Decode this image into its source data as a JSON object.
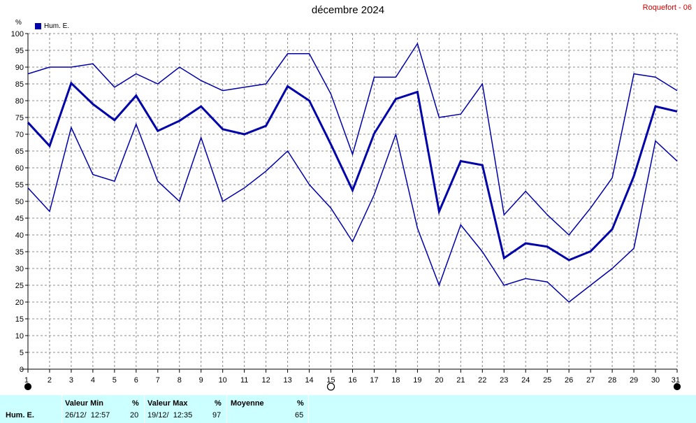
{
  "title": "décembre 2024",
  "station": "Roquefort - 06",
  "unit": "%",
  "legend": "Hum. E.",
  "chart_data": {
    "type": "line",
    "x": [
      1,
      2,
      3,
      4,
      5,
      6,
      7,
      8,
      9,
      10,
      11,
      12,
      13,
      14,
      15,
      16,
      17,
      18,
      19,
      20,
      21,
      22,
      23,
      24,
      25,
      26,
      27,
      28,
      29,
      30,
      31
    ],
    "ylim": [
      0,
      100
    ],
    "yticks": [
      0,
      5,
      10,
      15,
      20,
      25,
      30,
      35,
      40,
      45,
      50,
      55,
      60,
      65,
      70,
      75,
      80,
      85,
      90,
      95,
      100
    ],
    "xticks": [
      "1",
      "2",
      "3",
      "4",
      "5",
      "6",
      "7",
      "8",
      "9",
      "10",
      "11",
      "12",
      "13",
      "14",
      "15",
      "16",
      "17",
      "18",
      "19",
      "20",
      "21",
      "22",
      "23",
      "24",
      "25",
      "26",
      "27",
      "28",
      "29",
      "30",
      "31"
    ],
    "grid": true,
    "legend_position": "top-left",
    "color": "#0000aa",
    "series": [
      {
        "name": "Hum. E.",
        "role": "max",
        "values": [
          88,
          90,
          90,
          91,
          84,
          88,
          85,
          90,
          86,
          83,
          84,
          85,
          94,
          94,
          82,
          64,
          87,
          87,
          97,
          75,
          76,
          85,
          46,
          53,
          46,
          40,
          48,
          57,
          88,
          87,
          83
        ]
      },
      {
        "name": "Hum. E.",
        "role": "mean",
        "values": [
          73.5,
          66.5,
          85.2,
          79,
          74.2,
          81.5,
          71,
          74,
          78.3,
          71.5,
          70,
          72.5,
          84.3,
          80,
          67,
          53.3,
          70.2,
          80.5,
          82.6,
          47,
          62,
          60.8,
          33.1,
          37.5,
          36.5,
          32.5,
          35.1,
          41.7,
          57.5,
          78.3,
          76.8
        ]
      },
      {
        "name": "Hum. E.",
        "role": "min",
        "values": [
          54,
          47,
          72,
          58,
          56,
          73,
          56,
          50,
          69,
          50,
          54,
          59,
          65,
          55,
          48,
          38,
          52,
          70,
          42,
          25,
          43,
          35,
          25,
          27,
          26,
          20,
          25,
          30,
          36,
          68,
          62
        ]
      }
    ]
  },
  "footer": {
    "row_label": "Hum. E.",
    "min_label": "Valeur Min",
    "min_unit": "%",
    "min_date": "26/12/  12:57",
    "min_value": "20",
    "max_label": "Valeur Max",
    "max_unit": "%",
    "max_date": "19/12/  12:35",
    "max_value": "97",
    "mean_label": "Moyenne",
    "mean_unit": "%",
    "mean_value": "65"
  },
  "moon_phases": [
    {
      "day": 1,
      "phase": "new-moon"
    },
    {
      "day": 15,
      "phase": "full-moon"
    },
    {
      "day": 31,
      "phase": "new-moon"
    }
  ]
}
